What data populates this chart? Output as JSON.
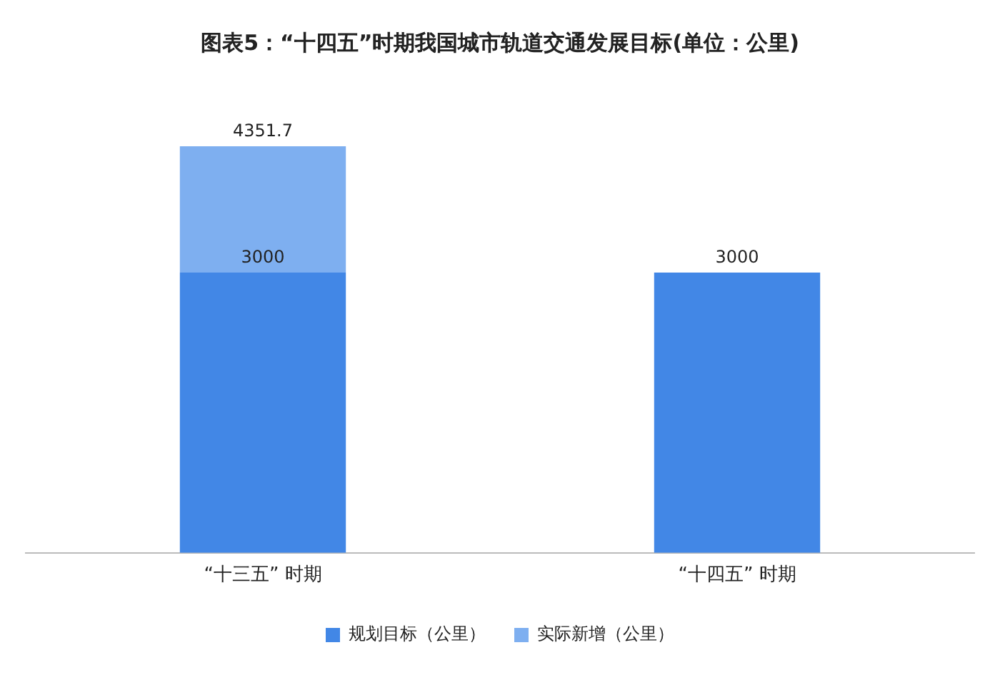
{
  "chart_data": {
    "type": "bar",
    "title": "图表5：“十四五”时期我国城市轨道交通发展目标(单位：公里)",
    "categories": [
      "“十三五” 时期",
      "“十四五” 时期"
    ],
    "stacked": true,
    "legend": "bottom",
    "series": [
      {
        "name": "规划目标（公里）",
        "color": "#4287e6",
        "values": [
          3000,
          3000
        ],
        "value_labels": [
          "3000",
          "3000"
        ]
      },
      {
        "name": "实际新增（公里）",
        "color": "#7eaff0",
        "values": [
          1351.7,
          null
        ],
        "value_labels": [
          null,
          null
        ]
      }
    ],
    "totals": [
      "4351.7",
      null
    ]
  }
}
